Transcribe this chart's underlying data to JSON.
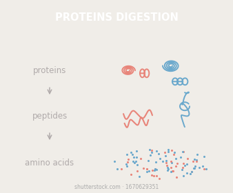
{
  "title": "PROTEINS DIGESTION",
  "title_bg": "#aaaaaa",
  "title_color": "#ffffff",
  "bg_color": "#f0ede8",
  "label_color": "#b0aaaa",
  "arrow_color": "#b0aaaa",
  "pink": "#e8857a",
  "blue": "#6aa8cc",
  "labels": [
    "proteins",
    "peptides",
    "amino acids"
  ],
  "label_fontsize": 8.5,
  "title_fontsize": 10.5
}
